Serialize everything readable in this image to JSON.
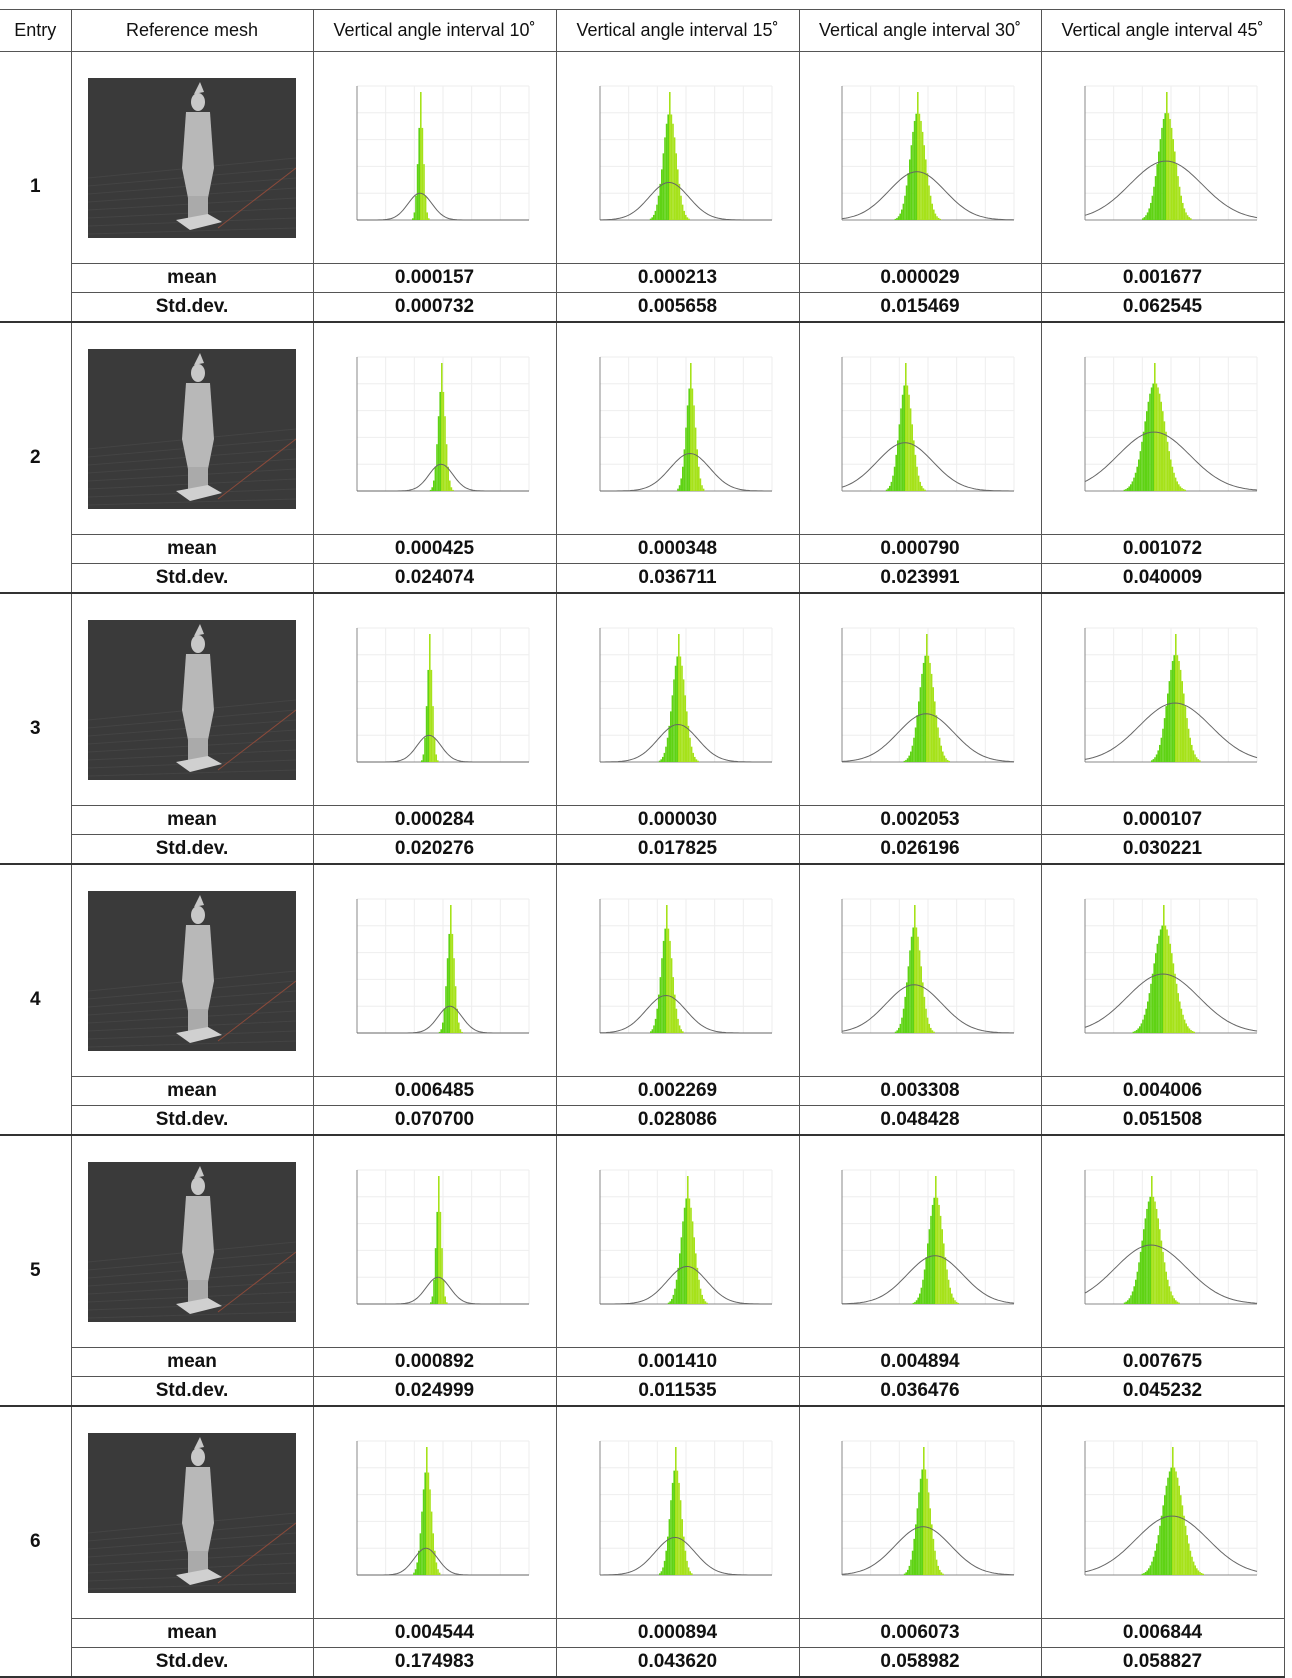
{
  "header": {
    "columns": [
      "Entry",
      "Reference mesh",
      "Vertical angle interval 10˚",
      "Vertical angle interval 15˚",
      "Vertical angle interval 30˚",
      "Vertical angle interval 45˚"
    ]
  },
  "entries": [
    {
      "entry": "1",
      "rows": [
        {
          "label": "mean",
          "values": [
            "0.000157",
            "0.000213",
            "0.000029",
            "0.001677"
          ]
        },
        {
          "label": "Std.dev.",
          "values": [
            "0.000732",
            "0.005658",
            "0.015469",
            "0.062545"
          ]
        }
      ]
    },
    {
      "entry": "2",
      "rows": [
        {
          "label": "mean",
          "values": [
            "0.000425",
            "0.000348",
            "0.000790",
            "0.001072"
          ]
        },
        {
          "label": "Std.dev.",
          "values": [
            "0.024074",
            "0.036711",
            "0.023991",
            "0.040009"
          ]
        }
      ]
    },
    {
      "entry": "3",
      "rows": [
        {
          "label": "mean",
          "values": [
            "0.000284",
            "0.000030",
            "0.002053",
            "0.000107"
          ]
        },
        {
          "label": "Std.dev.",
          "values": [
            "0.020276",
            "0.017825",
            "0.026196",
            "0.030221"
          ]
        }
      ]
    },
    {
      "entry": "4",
      "rows": [
        {
          "label": "mean",
          "values": [
            "0.006485",
            "0.002269",
            "0.003308",
            "0.004006"
          ]
        },
        {
          "label": "Std.dev.",
          "values": [
            "0.070700",
            "0.028086",
            "0.048428",
            "0.051508"
          ]
        }
      ]
    },
    {
      "entry": "5",
      "rows": [
        {
          "label": "mean",
          "values": [
            "0.000892",
            "0.001410",
            "0.004894",
            "0.007675"
          ]
        },
        {
          "label": "Std.dev.",
          "values": [
            "0.024999",
            "0.011535",
            "0.036476",
            "0.045232"
          ]
        }
      ]
    },
    {
      "entry": "6",
      "rows": [
        {
          "label": "mean",
          "values": [
            "0.004544",
            "0.000894",
            "0.006073",
            "0.006844"
          ]
        },
        {
          "label": "Std.dev.",
          "values": [
            "0.174983",
            "0.043620",
            "0.058982",
            "0.058827"
          ]
        }
      ]
    }
  ]
}
